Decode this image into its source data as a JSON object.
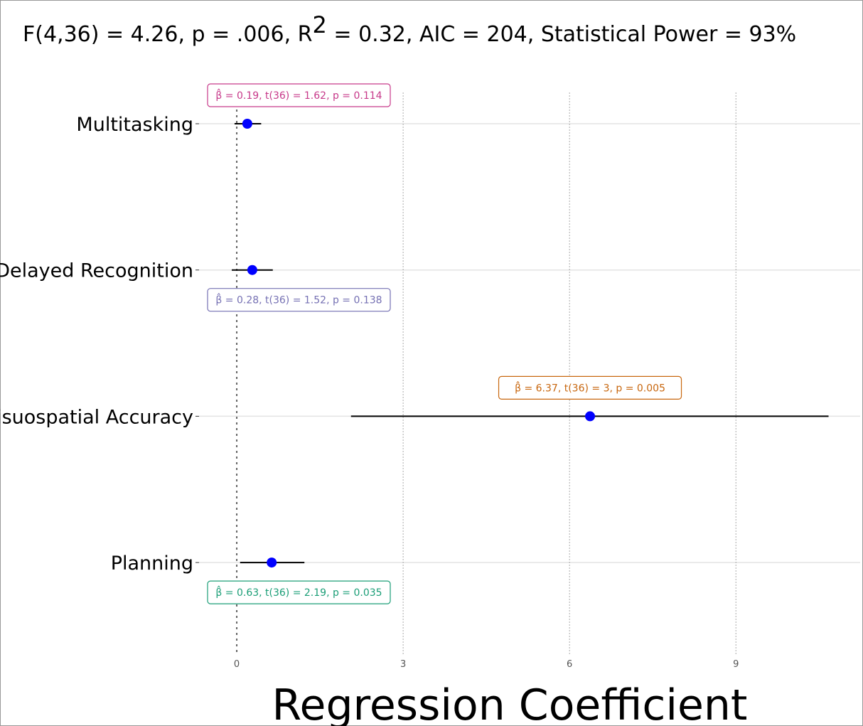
{
  "chart_data": {
    "type": "coefficient",
    "title": [
      "F(4,36) = 4.26, p = .006, R",
      "2",
      " = 0.32, AIC = 204, Statistical Power = 93%"
    ],
    "categories": [
      "Multitasking",
      "Delayed Recognition",
      "Visuospatial Accuracy",
      "Planning"
    ],
    "values": [
      0.19,
      0.28,
      6.37,
      0.63
    ],
    "ci_low": [
      -0.04,
      -0.09,
      2.06,
      0.06
    ],
    "ci_high": [
      0.44,
      0.65,
      10.67,
      1.22
    ],
    "value_labels": [
      "β̂ = 0.19,  t(36) = 1.62,  p = 0.114",
      "β̂ = 0.28,  t(36) = 1.52,  p = 0.138",
      "β̂ = 6.37,  t(36) = 3,  p = 0.005",
      "β̂ = 0.63,  t(36) = 2.19,  p = 0.035"
    ],
    "label_colors": [
      "#c7398a",
      "#7570b3",
      "#c8670f",
      "#1b9e77"
    ],
    "color": "#0000ff",
    "xlim": [
      -0.68,
      11.24
    ],
    "xticks": [
      0,
      3,
      6,
      9
    ],
    "xlabel": "Regression Coefficient",
    "grid": true
  }
}
